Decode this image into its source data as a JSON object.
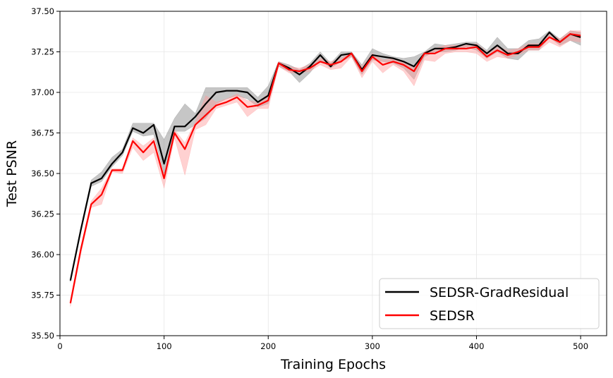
{
  "chart_data": {
    "type": "line",
    "title": "",
    "xlabel": "Training Epochs",
    "ylabel": "Test PSNR",
    "xlim": [
      0,
      525
    ],
    "ylim": [
      35.5,
      37.5
    ],
    "xticks": [
      0,
      100,
      200,
      300,
      400,
      500
    ],
    "yticks": [
      35.5,
      35.75,
      36.0,
      36.25,
      36.5,
      36.75,
      37.0,
      37.25,
      37.5
    ],
    "xtick_labels": [
      "0",
      "100",
      "200",
      "300",
      "400",
      "500"
    ],
    "ytick_labels": [
      "35.50",
      "35.75",
      "36.00",
      "36.25",
      "36.50",
      "36.75",
      "37.00",
      "37.25",
      "37.50"
    ],
    "grid": true,
    "legend_position": "bottom-right",
    "x": [
      10,
      20,
      30,
      40,
      50,
      60,
      70,
      80,
      90,
      100,
      110,
      120,
      130,
      140,
      150,
      160,
      170,
      180,
      190,
      200,
      210,
      220,
      230,
      240,
      250,
      260,
      270,
      280,
      290,
      300,
      310,
      320,
      330,
      340,
      350,
      360,
      370,
      380,
      390,
      400,
      410,
      420,
      430,
      440,
      450,
      460,
      470,
      480,
      490,
      500
    ],
    "series": [
      {
        "name": "SEDSR-GradResidual",
        "color": "#000000",
        "band_color": "#808080",
        "values": [
          35.84,
          36.15,
          36.44,
          36.47,
          36.56,
          36.63,
          36.78,
          36.75,
          36.8,
          36.56,
          36.79,
          36.79,
          36.85,
          36.93,
          37.0,
          37.01,
          37.01,
          37.0,
          36.94,
          36.98,
          37.18,
          37.15,
          37.11,
          37.16,
          37.23,
          37.16,
          37.23,
          37.24,
          37.14,
          37.23,
          37.22,
          37.21,
          37.19,
          37.16,
          37.24,
          37.27,
          37.27,
          37.28,
          37.3,
          37.29,
          37.24,
          37.29,
          37.24,
          37.24,
          37.29,
          37.29,
          37.37,
          37.31,
          37.36,
          37.34
        ],
        "lower": [
          35.83,
          36.14,
          36.42,
          36.45,
          36.54,
          36.61,
          36.76,
          36.73,
          36.74,
          36.5,
          36.76,
          36.76,
          36.8,
          36.84,
          36.93,
          36.96,
          36.98,
          36.96,
          36.91,
          36.93,
          37.16,
          37.13,
          37.06,
          37.12,
          37.2,
          37.15,
          37.19,
          37.22,
          37.11,
          37.2,
          37.19,
          37.18,
          37.15,
          37.08,
          37.22,
          37.25,
          37.25,
          37.26,
          37.28,
          37.26,
          37.21,
          37.25,
          37.21,
          37.2,
          37.26,
          37.26,
          37.34,
          37.29,
          37.32,
          37.29
        ],
        "upper": [
          35.85,
          36.17,
          36.46,
          36.51,
          36.6,
          36.65,
          36.81,
          36.81,
          36.81,
          36.71,
          36.84,
          36.93,
          36.87,
          37.03,
          37.03,
          37.03,
          37.03,
          37.03,
          36.97,
          37.04,
          37.19,
          37.17,
          37.14,
          37.18,
          37.25,
          37.18,
          37.25,
          37.25,
          37.17,
          37.27,
          37.24,
          37.22,
          37.21,
          37.22,
          37.25,
          37.3,
          37.29,
          37.3,
          37.31,
          37.31,
          37.26,
          37.34,
          37.27,
          37.27,
          37.32,
          37.33,
          37.38,
          37.33,
          37.38,
          37.37
        ]
      },
      {
        "name": "SEDSR",
        "color": "#ff0000",
        "band_color": "#ff9999",
        "values": [
          35.7,
          36.03,
          36.31,
          36.37,
          36.52,
          36.52,
          36.7,
          36.63,
          36.7,
          36.47,
          36.75,
          36.65,
          36.8,
          36.86,
          36.92,
          36.94,
          36.97,
          36.91,
          36.92,
          36.95,
          37.18,
          37.14,
          37.13,
          37.15,
          37.19,
          37.17,
          37.19,
          37.24,
          37.13,
          37.22,
          37.17,
          37.19,
          37.17,
          37.13,
          37.24,
          37.24,
          37.27,
          37.27,
          37.27,
          37.28,
          37.22,
          37.26,
          37.23,
          37.25,
          37.28,
          37.28,
          37.34,
          37.31,
          37.36,
          37.35
        ],
        "lower": [
          35.68,
          36.0,
          36.29,
          36.31,
          36.51,
          36.5,
          36.66,
          36.58,
          36.63,
          36.41,
          36.72,
          36.49,
          36.77,
          36.8,
          36.9,
          36.92,
          36.94,
          36.85,
          36.9,
          36.9,
          37.16,
          37.12,
          37.12,
          37.13,
          37.17,
          37.14,
          37.15,
          37.22,
          37.09,
          37.19,
          37.12,
          37.17,
          37.13,
          37.04,
          37.2,
          37.19,
          37.24,
          37.25,
          37.25,
          37.24,
          37.19,
          37.22,
          37.21,
          37.23,
          37.26,
          37.26,
          37.31,
          37.28,
          37.32,
          37.31
        ],
        "upper": [
          35.72,
          36.05,
          36.33,
          36.41,
          36.53,
          36.53,
          36.72,
          36.67,
          36.72,
          36.49,
          36.77,
          36.69,
          36.82,
          36.98,
          36.94,
          36.96,
          36.99,
          36.95,
          36.94,
          36.99,
          37.19,
          37.16,
          37.15,
          37.17,
          37.21,
          37.19,
          37.21,
          37.25,
          37.16,
          37.24,
          37.2,
          37.21,
          37.19,
          37.16,
          37.25,
          37.27,
          37.29,
          37.29,
          37.29,
          37.3,
          37.25,
          37.28,
          37.26,
          37.27,
          37.3,
          37.3,
          37.36,
          37.33,
          37.38,
          37.38
        ]
      }
    ]
  }
}
